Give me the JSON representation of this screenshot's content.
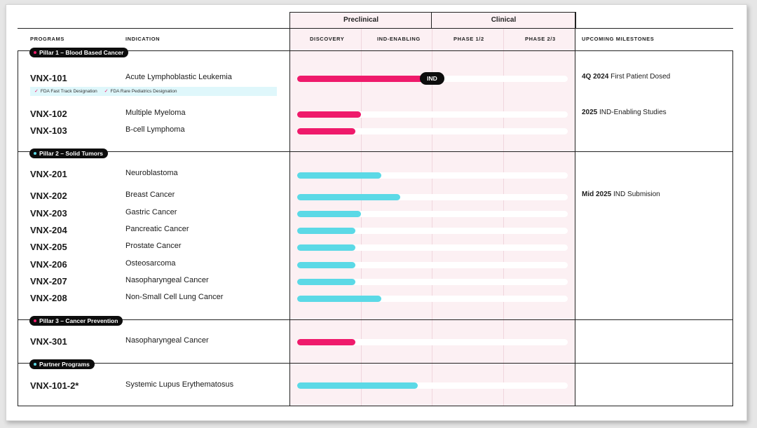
{
  "stage_groups": {
    "preclinical": "Preclinical",
    "clinical": "Clinical"
  },
  "columns": {
    "programs": "PROGRAMS",
    "indication": "INDICATION",
    "discovery": "DISCOVERY",
    "ind_enabling": "IND-ENABLING",
    "phase12": "PHASE 1/2",
    "phase23": "PHASE 2/3",
    "milestones": "UPCOMING MILESTONES"
  },
  "colors": {
    "pink": "#ef1a6b",
    "cyan": "#5bd9e6",
    "band": "#fcf0f3",
    "dark": "#0d0d0d"
  },
  "sections": {
    "pillar1": {
      "label": "Pillar 1 – Blood Based Cancer",
      "dot_color": "#ef1a6b"
    },
    "pillar2": {
      "label": "Pillar 2 – Solid Tumors",
      "dot_color": "#5bd9e6"
    },
    "pillar3": {
      "label": "Pillar 3 – Cancer Prevention",
      "dot_color": "#ef1a6b"
    },
    "partner": {
      "label": "Partner Programs",
      "dot_color": "#5bd9e6"
    }
  },
  "fda": {
    "check_icon": "check-icon",
    "fast_track": "FDA Fast Track Designation",
    "rare_pediatrics": "FDA Rare Pediatrics Designation"
  },
  "ind_badge": "IND",
  "programs": [
    {
      "id": "VNX-101",
      "indication": "Acute Lymphoblastic Leukemia",
      "progress": 0.5,
      "color": "pink",
      "milestone_bold": "4Q 2024",
      "milestone_text": "First Patient Dosed"
    },
    {
      "id": "VNX-102",
      "indication": "Multiple Myeloma",
      "progress": 0.235,
      "color": "pink",
      "milestone_bold": "2025",
      "milestone_text": "IND-Enabling Studies"
    },
    {
      "id": "VNX-103",
      "indication": "B-cell Lymphoma",
      "progress": 0.215,
      "color": "pink"
    },
    {
      "id": "VNX-201",
      "indication": "Neuroblastoma",
      "progress": 0.31,
      "color": "cyan"
    },
    {
      "id": "VNX-202",
      "indication": "Breast Cancer",
      "progress": 0.38,
      "color": "cyan",
      "milestone_bold": "Mid 2025",
      "milestone_text": "IND Submision"
    },
    {
      "id": "VNX-203",
      "indication": "Gastric Cancer",
      "progress": 0.235,
      "color": "cyan"
    },
    {
      "id": "VNX-204",
      "indication": "Pancreatic Cancer",
      "progress": 0.215,
      "color": "cyan"
    },
    {
      "id": "VNX-205",
      "indication": "Prostate Cancer",
      "progress": 0.215,
      "color": "cyan"
    },
    {
      "id": "VNX-206",
      "indication": "Osteosarcoma",
      "progress": 0.215,
      "color": "cyan"
    },
    {
      "id": "VNX-207",
      "indication": "Nasopharyngeal Cancer",
      "progress": 0.215,
      "color": "cyan"
    },
    {
      "id": "VNX-208",
      "indication": "Non-Small Cell Lung Cancer",
      "progress": 0.31,
      "color": "cyan"
    },
    {
      "id": "VNX-301",
      "indication": "Nasopharyngeal Cancer",
      "progress": 0.215,
      "color": "pink"
    },
    {
      "id": "VNX-101-2*",
      "indication": "Systemic Lupus Erythematosus",
      "progress": 0.445,
      "color": "cyan"
    }
  ]
}
